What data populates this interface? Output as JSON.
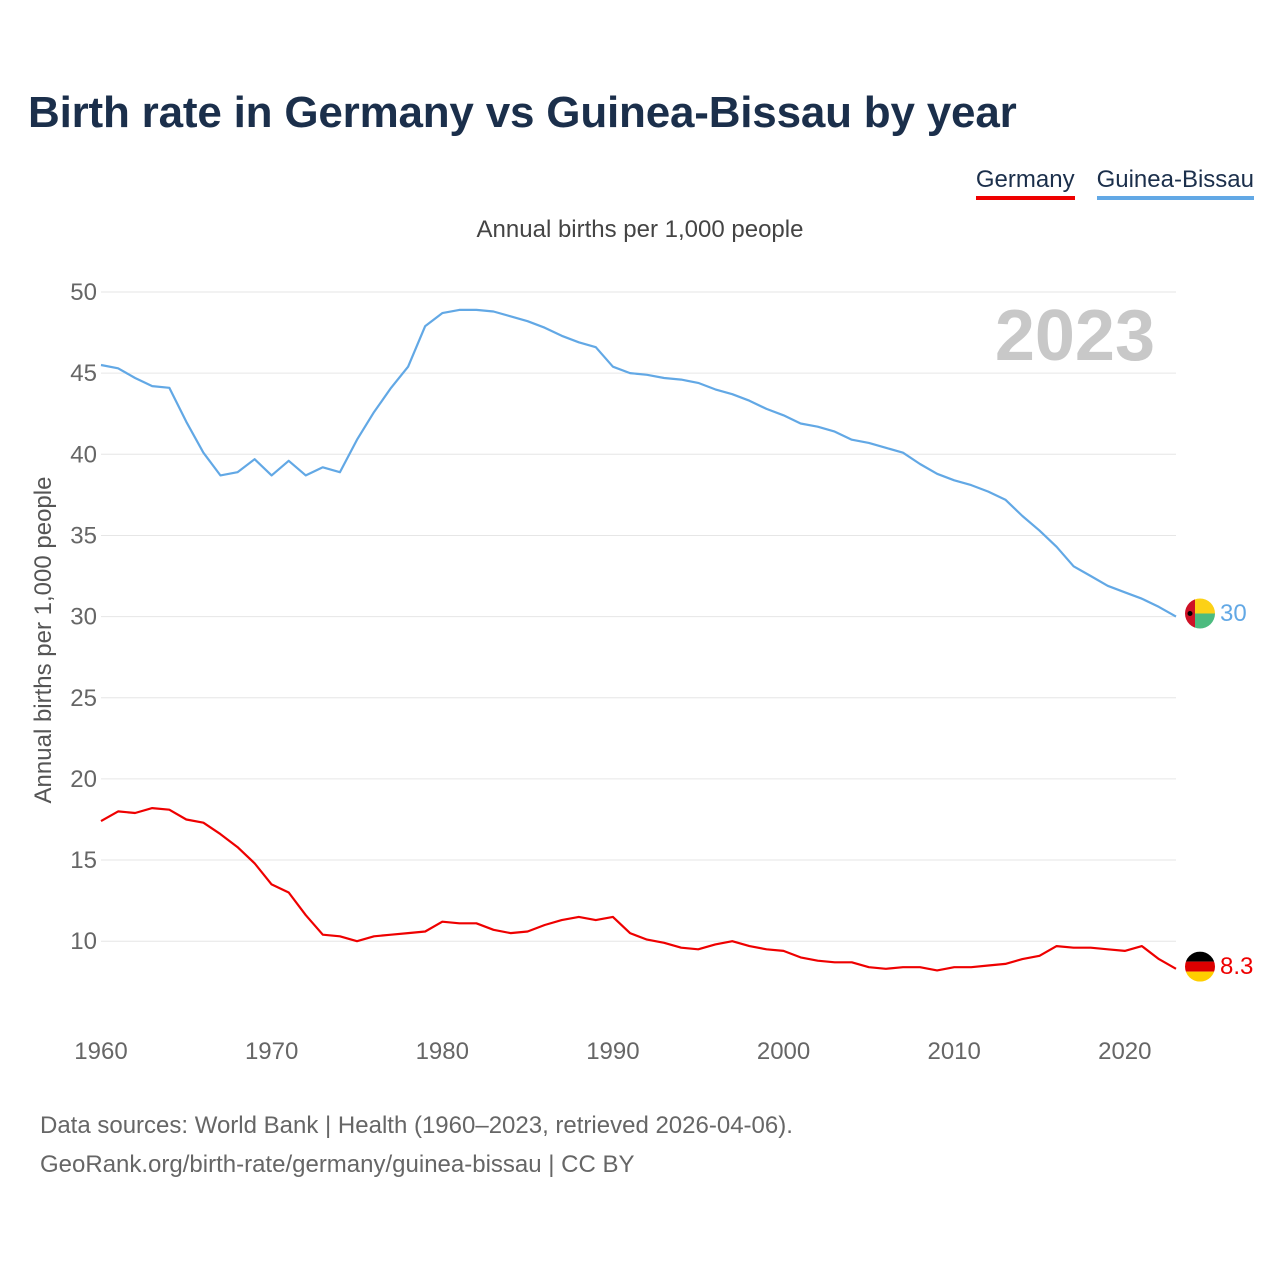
{
  "title": "Birth rate in Germany vs Guinea-Bissau by year",
  "legend": [
    "Germany",
    "Guinea-Bissau"
  ],
  "subtitle": "Annual births per 1,000 people",
  "year_label": "2023",
  "source_line1": "Data sources: World Bank | Health (1960–2023, retrieved 2026-04-06).",
  "source_line2": "GeoRank.org/birth-rate/germany/guinea-bissau | CC BY",
  "colors": {
    "germany": "#ee0000",
    "guinea_bissau": "#62a8e5",
    "title": "#1b2f4b",
    "year": "#c8c8c8"
  },
  "chart_data": {
    "type": "line",
    "title": "Birth rate in Germany vs Guinea-Bissau by year",
    "ylabel": "Annual births per 1,000 people",
    "xlabel": "",
    "xlim": [
      1960,
      2023
    ],
    "ylim": [
      5,
      50
    ],
    "x_ticks": [
      1960,
      1970,
      1980,
      1990,
      2000,
      2010,
      2020
    ],
    "y_ticks": [
      10,
      15,
      20,
      25,
      30,
      35,
      40,
      45,
      50
    ],
    "x": [
      1960,
      1961,
      1962,
      1963,
      1964,
      1965,
      1966,
      1967,
      1968,
      1969,
      1970,
      1971,
      1972,
      1973,
      1974,
      1975,
      1976,
      1977,
      1978,
      1979,
      1980,
      1981,
      1982,
      1983,
      1984,
      1985,
      1986,
      1987,
      1988,
      1989,
      1990,
      1991,
      1992,
      1993,
      1994,
      1995,
      1996,
      1997,
      1998,
      1999,
      2000,
      2001,
      2002,
      2003,
      2004,
      2005,
      2006,
      2007,
      2008,
      2009,
      2010,
      2011,
      2012,
      2013,
      2014,
      2015,
      2016,
      2017,
      2018,
      2019,
      2020,
      2021,
      2022,
      2023
    ],
    "series": [
      {
        "name": "Germany",
        "end_label": "8.3",
        "values": [
          17.4,
          18.0,
          17.9,
          18.2,
          18.1,
          17.5,
          17.3,
          16.6,
          15.8,
          14.8,
          13.5,
          13.0,
          11.6,
          10.4,
          10.3,
          10.0,
          10.3,
          10.4,
          10.5,
          10.6,
          11.2,
          11.1,
          11.1,
          10.7,
          10.5,
          10.6,
          11.0,
          11.3,
          11.5,
          11.3,
          11.5,
          10.5,
          10.1,
          9.9,
          9.6,
          9.5,
          9.8,
          10.0,
          9.7,
          9.5,
          9.4,
          9.0,
          8.8,
          8.7,
          8.7,
          8.4,
          8.3,
          8.4,
          8.4,
          8.2,
          8.4,
          8.4,
          8.5,
          8.6,
          8.9,
          9.1,
          9.7,
          9.6,
          9.6,
          9.5,
          9.4,
          9.7,
          8.9,
          8.3
        ]
      },
      {
        "name": "Guinea-Bissau",
        "end_label": "30",
        "values": [
          45.5,
          45.3,
          44.7,
          44.2,
          44.1,
          42.0,
          40.1,
          38.7,
          38.9,
          39.7,
          38.7,
          39.6,
          38.7,
          39.2,
          38.9,
          40.9,
          42.6,
          44.1,
          45.4,
          47.9,
          48.7,
          48.9,
          48.9,
          48.8,
          48.5,
          48.2,
          47.8,
          47.3,
          46.9,
          46.6,
          45.4,
          45.0,
          44.9,
          44.7,
          44.6,
          44.4,
          44.0,
          43.7,
          43.3,
          42.8,
          42.4,
          41.9,
          41.7,
          41.4,
          40.9,
          40.7,
          40.4,
          40.1,
          39.4,
          38.8,
          38.4,
          38.1,
          37.7,
          37.2,
          36.2,
          35.3,
          34.3,
          33.1,
          32.5,
          31.9,
          31.5,
          31.1,
          30.6,
          30.0
        ]
      }
    ]
  }
}
